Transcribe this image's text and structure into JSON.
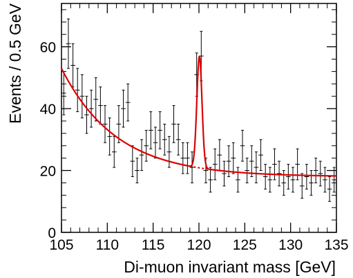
{
  "chart_data": {
    "type": "scatter",
    "title": "",
    "xlabel": "Di-muon invariant mass [GeV]",
    "ylabel": "Events / 0.5 GeV",
    "xlim": [
      105,
      135
    ],
    "ylim": [
      0,
      74
    ],
    "xticks": [
      105,
      110,
      115,
      120,
      125,
      130,
      135
    ],
    "xtick_labels": [
      "105",
      "110",
      "115",
      "120",
      "125",
      "130",
      "135"
    ],
    "yticks": [
      0,
      20,
      40,
      60
    ],
    "ytick_labels": [
      "0",
      "20",
      "40",
      "60"
    ],
    "bin_width": 0.5,
    "grid": false,
    "legend": "none",
    "series": [
      {
        "kind": "data-points-with-errors",
        "color": "#000000",
        "x": [
          105.25,
          105.75,
          106.25,
          106.75,
          107.25,
          107.75,
          108.25,
          108.75,
          109.25,
          109.75,
          110.25,
          110.75,
          111.25,
          111.75,
          112.25,
          112.75,
          113.25,
          113.75,
          114.25,
          114.75,
          115.25,
          115.75,
          116.25,
          116.75,
          117.25,
          117.75,
          118.25,
          118.75,
          119.25,
          119.75,
          120.25,
          120.75,
          121.25,
          121.75,
          122.25,
          122.75,
          123.25,
          123.75,
          124.25,
          124.75,
          125.25,
          125.75,
          126.25,
          126.75,
          127.25,
          127.75,
          128.25,
          128.75,
          129.25,
          129.75,
          130.25,
          130.75,
          131.25,
          131.75,
          132.25,
          132.75,
          133.25,
          133.75,
          134.25,
          134.75
        ],
        "y": [
          45,
          61,
          54,
          46,
          44,
          38,
          40,
          43,
          41,
          35,
          31,
          26,
          35,
          40,
          42,
          23,
          20,
          25,
          28,
          33,
          29,
          33,
          30,
          26,
          35,
          30,
          24,
          24,
          21,
          51,
          57,
          20,
          17,
          22,
          25,
          19,
          23,
          24,
          17,
          28,
          20,
          23,
          21,
          25,
          18,
          17,
          22,
          19,
          16,
          18,
          17,
          22,
          15,
          18,
          16,
          20,
          19,
          17,
          14,
          17
        ],
        "yerr": [
          7,
          8,
          7,
          7,
          7,
          6,
          6,
          7,
          6,
          6,
          6,
          5,
          6,
          6,
          6,
          5,
          4,
          5,
          5,
          6,
          5,
          6,
          5,
          5,
          6,
          5,
          5,
          5,
          5,
          7,
          8,
          4,
          4,
          5,
          5,
          4,
          5,
          5,
          4,
          5,
          4,
          5,
          5,
          5,
          4,
          4,
          5,
          4,
          4,
          4,
          4,
          5,
          4,
          4,
          4,
          4,
          4,
          4,
          4,
          4
        ]
      },
      {
        "kind": "fit-background-plus-signal",
        "name": "",
        "color": "#dd0000",
        "style": "solid",
        "background": {
          "a": 18,
          "b": 35,
          "tau": 6.0
        },
        "signal": {
          "amplitude": 36,
          "mean": 120.05,
          "sigma": 0.28
        },
        "solid_ranges": [
          [
            105,
            118.3
          ],
          [
            118.3,
            135
          ]
        ]
      },
      {
        "kind": "fit-background-only",
        "name": "",
        "color": "#dd0000",
        "style": "dashed",
        "range": [
          113.8,
          122
        ]
      }
    ]
  }
}
